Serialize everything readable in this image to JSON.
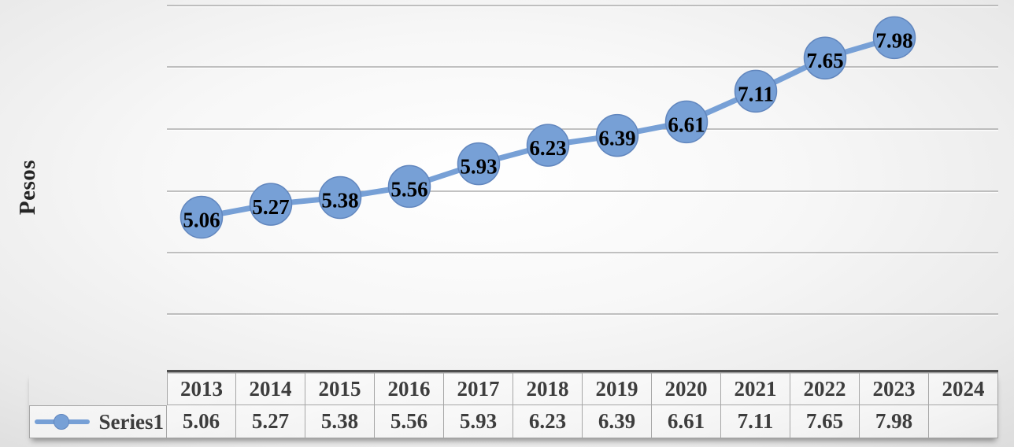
{
  "chart_data": {
    "type": "line",
    "title": "",
    "xlabel": "",
    "ylabel": "Pesos",
    "categories": [
      "2013",
      "2014",
      "2015",
      "2016",
      "2017",
      "2018",
      "2019",
      "2020",
      "2021",
      "2022",
      "2023",
      "2024"
    ],
    "series": [
      {
        "name": "Series1",
        "values": [
          5.06,
          5.27,
          5.38,
          5.56,
          5.93,
          6.23,
          6.39,
          6.61,
          7.11,
          7.65,
          7.98,
          null
        ]
      }
    ],
    "data_labels_visible": true,
    "marker_style": "large-circle",
    "grid": "horizontal-only",
    "gridline_count": 6,
    "axis_tick_labels_visible": false,
    "legend_position": "data-table-left"
  },
  "table": {
    "legend_label": "Series1",
    "columns": [
      "2013",
      "2014",
      "2015",
      "2016",
      "2017",
      "2018",
      "2019",
      "2020",
      "2021",
      "2022",
      "2023",
      "2024"
    ],
    "rows": [
      {
        "label": "Series1",
        "values": [
          "5.06",
          "5.27",
          "5.38",
          "5.56",
          "5.93",
          "6.23",
          "6.39",
          "6.61",
          "7.11",
          "7.65",
          "7.98",
          ""
        ]
      }
    ]
  },
  "colors": {
    "series_fill": "#77a0d6",
    "series_stroke": "#6186be",
    "data_label_text": "#000000",
    "axis_title_text": "#262626",
    "table_text": "#3d3d3d",
    "table_border": "#a6a6a6",
    "gridline": "#9e9e9e",
    "axis_line": "#4d4d4d"
  }
}
